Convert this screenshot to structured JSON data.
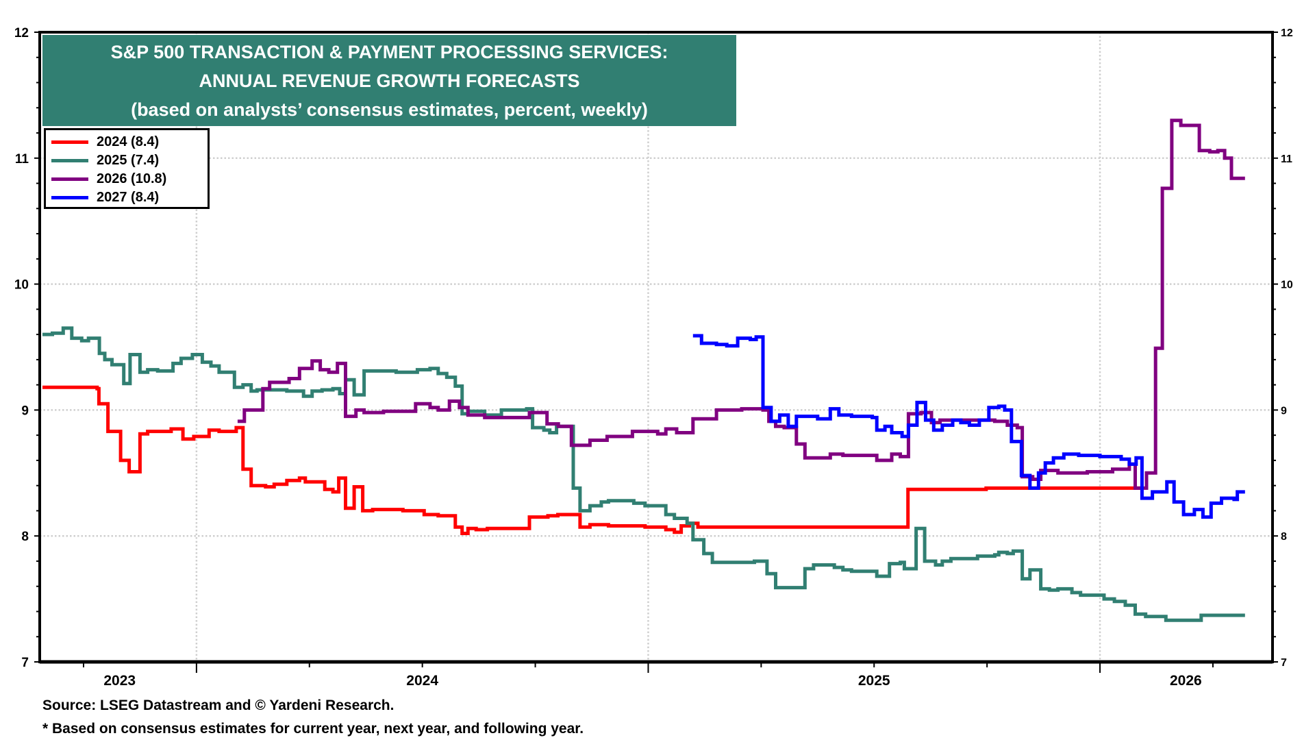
{
  "chart_data": {
    "type": "line",
    "title": [
      "S&P 500 TRANSACTION & PAYMENT PROCESSING SERVICES:",
      "ANNUAL REVENUE GROWTH FORECASTS",
      "(based on analysts’ consensus estimates, percent, weekly)"
    ],
    "ylim": [
      7,
      12
    ],
    "y_ticks": [
      "7",
      "8",
      "9",
      "10",
      "11",
      "12"
    ],
    "xlim": [
      2023.653,
      2026.382
    ],
    "x_tick_labels": [
      {
        "label": "2023",
        "center": 2023.83
      },
      {
        "label": "2024",
        "center": 2024.5
      },
      {
        "label": "2025",
        "center": 2025.5
      },
      {
        "label": "2026",
        "center": 2026.19
      }
    ],
    "grid": true,
    "legend_position": "top-left",
    "step": true,
    "series": [
      {
        "name": "2024 (8.4)",
        "color": "#ff0000",
        "points": [
          [
            2023.659,
            9.18
          ],
          [
            2023.78,
            9.17
          ],
          [
            2023.784,
            9.05
          ],
          [
            2023.804,
            8.83
          ],
          [
            2023.832,
            8.6
          ],
          [
            2023.851,
            8.51
          ],
          [
            2023.875,
            8.81
          ],
          [
            2023.892,
            8.83
          ],
          [
            2023.944,
            8.85
          ],
          [
            2023.97,
            8.77
          ],
          [
            2023.994,
            8.79
          ],
          [
            2024.028,
            8.84
          ],
          [
            2024.05,
            8.83
          ],
          [
            2024.088,
            8.86
          ],
          [
            2024.103,
            8.53
          ],
          [
            2024.121,
            8.4
          ],
          [
            2024.153,
            8.39
          ],
          [
            2024.172,
            8.41
          ],
          [
            2024.2,
            8.44
          ],
          [
            2024.228,
            8.46
          ],
          [
            2024.241,
            8.43
          ],
          [
            2024.284,
            8.37
          ],
          [
            2024.302,
            8.35
          ],
          [
            2024.315,
            8.46
          ],
          [
            2024.33,
            8.22
          ],
          [
            2024.349,
            8.39
          ],
          [
            2024.368,
            8.2
          ],
          [
            2024.39,
            8.21
          ],
          [
            2024.457,
            8.2
          ],
          [
            2024.504,
            8.17
          ],
          [
            2024.535,
            8.16
          ],
          [
            2024.573,
            8.07
          ],
          [
            2024.588,
            8.02
          ],
          [
            2024.601,
            8.06
          ],
          [
            2024.619,
            8.05
          ],
          [
            2024.644,
            8.06
          ],
          [
            2024.737,
            8.15
          ],
          [
            2024.778,
            8.16
          ],
          [
            2024.8,
            8.17
          ],
          [
            2024.849,
            8.07
          ],
          [
            2024.871,
            8.09
          ],
          [
            2024.912,
            8.08
          ],
          [
            2024.993,
            8.07
          ],
          [
            2025.039,
            8.05
          ],
          [
            2025.058,
            8.03
          ],
          [
            2025.073,
            8.08
          ],
          [
            2025.091,
            8.1
          ],
          [
            2025.11,
            8.07
          ],
          [
            2025.575,
            8.37
          ],
          [
            2025.748,
            8.38
          ],
          [
            2026.095,
            8.38
          ]
        ]
      },
      {
        "name": "2025 (7.4)",
        "color": "#317f72",
        "points": [
          [
            2023.659,
            9.6
          ],
          [
            2023.681,
            9.61
          ],
          [
            2023.705,
            9.65
          ],
          [
            2023.724,
            9.57
          ],
          [
            2023.746,
            9.55
          ],
          [
            2023.761,
            9.57
          ],
          [
            2023.785,
            9.45
          ],
          [
            2023.797,
            9.4
          ],
          [
            2023.813,
            9.36
          ],
          [
            2023.839,
            9.21
          ],
          [
            2023.853,
            9.44
          ],
          [
            2023.875,
            9.3
          ],
          [
            2023.892,
            9.32
          ],
          [
            2023.914,
            9.31
          ],
          [
            2023.948,
            9.37
          ],
          [
            2023.966,
            9.41
          ],
          [
            2023.991,
            9.44
          ],
          [
            2024.013,
            9.38
          ],
          [
            2024.032,
            9.35
          ],
          [
            2024.05,
            9.3
          ],
          [
            2024.084,
            9.18
          ],
          [
            2024.103,
            9.2
          ],
          [
            2024.121,
            9.15
          ],
          [
            2024.134,
            9.16
          ],
          [
            2024.2,
            9.15
          ],
          [
            2024.237,
            9.11
          ],
          [
            2024.256,
            9.15
          ],
          [
            2024.278,
            9.16
          ],
          [
            2024.302,
            9.17
          ],
          [
            2024.317,
            9.13
          ],
          [
            2024.33,
            9.24
          ],
          [
            2024.349,
            9.12
          ],
          [
            2024.371,
            9.31
          ],
          [
            2024.442,
            9.3
          ],
          [
            2024.489,
            9.32
          ],
          [
            2024.517,
            9.33
          ],
          [
            2024.535,
            9.29
          ],
          [
            2024.554,
            9.26
          ],
          [
            2024.573,
            9.19
          ],
          [
            2024.588,
            8.97
          ],
          [
            2024.601,
            8.99
          ],
          [
            2024.638,
            8.96
          ],
          [
            2024.675,
            9.0
          ],
          [
            2024.731,
            9.01
          ],
          [
            2024.744,
            8.86
          ],
          [
            2024.769,
            8.84
          ],
          [
            2024.782,
            8.82
          ],
          [
            2024.797,
            8.87
          ],
          [
            2024.83,
            8.87
          ],
          [
            2024.834,
            8.38
          ],
          [
            2024.849,
            8.2
          ],
          [
            2024.871,
            8.24
          ],
          [
            2024.896,
            8.27
          ],
          [
            2024.912,
            8.28
          ],
          [
            2024.968,
            8.26
          ],
          [
            2024.993,
            8.24
          ],
          [
            2025.039,
            8.17
          ],
          [
            2025.058,
            8.14
          ],
          [
            2025.086,
            8.1
          ],
          [
            2025.099,
            7.97
          ],
          [
            2025.123,
            7.86
          ],
          [
            2025.142,
            7.79
          ],
          [
            2025.235,
            7.8
          ],
          [
            2025.263,
            7.7
          ],
          [
            2025.282,
            7.59
          ],
          [
            2025.347,
            7.74
          ],
          [
            2025.366,
            7.77
          ],
          [
            2025.412,
            7.75
          ],
          [
            2025.431,
            7.73
          ],
          [
            2025.45,
            7.72
          ],
          [
            2025.506,
            7.68
          ],
          [
            2025.534,
            7.78
          ],
          [
            2025.558,
            7.79
          ],
          [
            2025.567,
            7.74
          ],
          [
            2025.593,
            8.06
          ],
          [
            2025.612,
            7.8
          ],
          [
            2025.636,
            7.77
          ],
          [
            2025.651,
            7.8
          ],
          [
            2025.67,
            7.82
          ],
          [
            2025.729,
            7.84
          ],
          [
            2025.767,
            7.85
          ],
          [
            2025.776,
            7.87
          ],
          [
            2025.795,
            7.86
          ],
          [
            2025.808,
            7.88
          ],
          [
            2025.828,
            7.66
          ],
          [
            2025.845,
            7.73
          ],
          [
            2025.869,
            7.58
          ],
          [
            2025.888,
            7.57
          ],
          [
            2025.907,
            7.58
          ],
          [
            2025.938,
            7.55
          ],
          [
            2025.957,
            7.53
          ],
          [
            2026.009,
            7.5
          ],
          [
            2026.032,
            7.48
          ],
          [
            2026.056,
            7.45
          ],
          [
            2026.078,
            7.38
          ],
          [
            2026.101,
            7.36
          ],
          [
            2026.146,
            7.33
          ],
          [
            2026.224,
            7.37
          ],
          [
            2026.321,
            7.37
          ]
        ]
      },
      {
        "name": "2026 (10.8)",
        "color": "#800080",
        "points": [
          [
            2024.091,
            8.91
          ],
          [
            2024.106,
            9.0
          ],
          [
            2024.147,
            9.17
          ],
          [
            2024.162,
            9.22
          ],
          [
            2024.205,
            9.25
          ],
          [
            2024.228,
            9.33
          ],
          [
            2024.256,
            9.39
          ],
          [
            2024.274,
            9.32
          ],
          [
            2024.293,
            9.3
          ],
          [
            2024.312,
            9.37
          ],
          [
            2024.33,
            8.95
          ],
          [
            2024.353,
            9.0
          ],
          [
            2024.371,
            8.98
          ],
          [
            2024.414,
            8.99
          ],
          [
            2024.485,
            9.05
          ],
          [
            2024.517,
            9.02
          ],
          [
            2024.535,
            9.0
          ],
          [
            2024.56,
            9.07
          ],
          [
            2024.582,
            9.02
          ],
          [
            2024.601,
            8.96
          ],
          [
            2024.638,
            8.94
          ],
          [
            2024.737,
            8.98
          ],
          [
            2024.776,
            8.89
          ],
          [
            2024.801,
            8.87
          ],
          [
            2024.83,
            8.72
          ],
          [
            2024.871,
            8.76
          ],
          [
            2024.909,
            8.79
          ],
          [
            2024.965,
            8.83
          ],
          [
            2025.021,
            8.81
          ],
          [
            2025.039,
            8.85
          ],
          [
            2025.063,
            8.82
          ],
          [
            2025.099,
            8.93
          ],
          [
            2025.151,
            9.0
          ],
          [
            2025.207,
            9.01
          ],
          [
            2025.254,
            9.0
          ],
          [
            2025.267,
            8.91
          ],
          [
            2025.282,
            8.87
          ],
          [
            2025.301,
            8.86
          ],
          [
            2025.328,
            8.73
          ],
          [
            2025.347,
            8.62
          ],
          [
            2025.403,
            8.65
          ],
          [
            2025.431,
            8.64
          ],
          [
            2025.506,
            8.6
          ],
          [
            2025.539,
            8.65
          ],
          [
            2025.558,
            8.63
          ],
          [
            2025.576,
            8.97
          ],
          [
            2025.604,
            8.98
          ],
          [
            2025.627,
            8.9
          ],
          [
            2025.646,
            8.92
          ],
          [
            2025.767,
            8.91
          ],
          [
            2025.795,
            8.88
          ],
          [
            2025.817,
            8.86
          ],
          [
            2025.828,
            8.47
          ],
          [
            2025.851,
            8.45
          ],
          [
            2025.869,
            8.52
          ],
          [
            2025.907,
            8.5
          ],
          [
            2025.972,
            8.51
          ],
          [
            2026.028,
            8.53
          ],
          [
            2026.065,
            8.57
          ],
          [
            2026.078,
            8.38
          ],
          [
            2026.103,
            8.5
          ],
          [
            2026.123,
            9.49
          ],
          [
            2026.138,
            10.76
          ],
          [
            2026.159,
            11.3
          ],
          [
            2026.179,
            11.26
          ],
          [
            2026.22,
            11.06
          ],
          [
            2026.243,
            11.05
          ],
          [
            2026.261,
            11.06
          ],
          [
            2026.276,
            11.0
          ],
          [
            2026.291,
            10.84
          ],
          [
            2026.321,
            10.84
          ]
        ]
      },
      {
        "name": "2027 (8.4)",
        "color": "#0000ff",
        "points": [
          [
            2025.099,
            9.59
          ],
          [
            2025.118,
            9.53
          ],
          [
            2025.151,
            9.52
          ],
          [
            2025.174,
            9.51
          ],
          [
            2025.198,
            9.57
          ],
          [
            2025.226,
            9.56
          ],
          [
            2025.239,
            9.58
          ],
          [
            2025.254,
            9.02
          ],
          [
            2025.272,
            8.91
          ],
          [
            2025.291,
            8.96
          ],
          [
            2025.31,
            8.87
          ],
          [
            2025.328,
            8.95
          ],
          [
            2025.375,
            8.93
          ],
          [
            2025.403,
            9.01
          ],
          [
            2025.422,
            8.96
          ],
          [
            2025.45,
            8.95
          ],
          [
            2025.496,
            8.94
          ],
          [
            2025.506,
            8.84
          ],
          [
            2025.524,
            8.87
          ],
          [
            2025.539,
            8.82
          ],
          [
            2025.562,
            8.79
          ],
          [
            2025.576,
            8.88
          ],
          [
            2025.595,
            9.06
          ],
          [
            2025.614,
            8.92
          ],
          [
            2025.632,
            8.84
          ],
          [
            2025.651,
            8.88
          ],
          [
            2025.674,
            8.92
          ],
          [
            2025.692,
            8.9
          ],
          [
            2025.711,
            8.88
          ],
          [
            2025.733,
            8.92
          ],
          [
            2025.754,
            9.02
          ],
          [
            2025.776,
            9.03
          ],
          [
            2025.789,
            9.0
          ],
          [
            2025.804,
            8.75
          ],
          [
            2025.826,
            8.48
          ],
          [
            2025.845,
            8.38
          ],
          [
            2025.864,
            8.5
          ],
          [
            2025.879,
            8.58
          ],
          [
            2025.897,
            8.62
          ],
          [
            2025.92,
            8.65
          ],
          [
            2025.953,
            8.64
          ],
          [
            2026.0,
            8.63
          ],
          [
            2026.047,
            8.61
          ],
          [
            2026.065,
            8.57
          ],
          [
            2026.08,
            8.62
          ],
          [
            2026.093,
            8.3
          ],
          [
            2026.116,
            8.35
          ],
          [
            2026.148,
            8.43
          ],
          [
            2026.164,
            8.27
          ],
          [
            2026.185,
            8.17
          ],
          [
            2026.209,
            8.21
          ],
          [
            2026.228,
            8.15
          ],
          [
            2026.246,
            8.26
          ],
          [
            2026.269,
            8.3
          ],
          [
            2026.297,
            8.29
          ],
          [
            2026.304,
            8.35
          ],
          [
            2026.321,
            8.35
          ]
        ]
      }
    ]
  },
  "footer": {
    "source": "Source: LSEG Datastream and © Yardeni Research.",
    "note": "* Based on consensus estimates for current year, next year, and following year."
  }
}
